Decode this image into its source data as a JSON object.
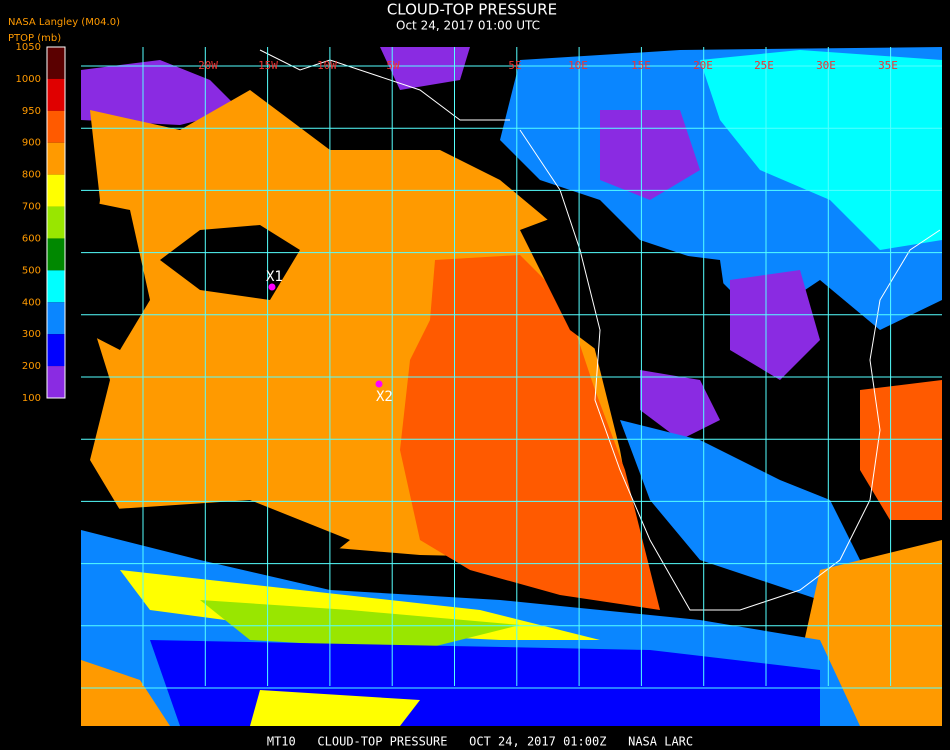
{
  "header": {
    "title": "CLOUD-TOP PRESSURE",
    "subtitle": "Oct 24, 2017 01:00 UTC",
    "source": "NASA Langley (M04.0)"
  },
  "legend": {
    "title": "PTOP (mb)",
    "labels": [
      1050,
      1000,
      950,
      900,
      800,
      700,
      600,
      500,
      400,
      300,
      200,
      100
    ],
    "colors": [
      "#5a0000",
      "#e00000",
      "#ff5a00",
      "#ff9a00",
      "#ffff00",
      "#99e600",
      "#008800",
      "#00ffff",
      "#0a86ff",
      "#0000ff",
      "#8a2be2"
    ]
  },
  "grid_labels": [
    "20W",
    "15W",
    "10W",
    "5W",
    "5E",
    "10E",
    "15E",
    "20E",
    "25E",
    "30E",
    "35E"
  ],
  "markers": [
    {
      "label": "X1"
    },
    {
      "label": "X2"
    }
  ],
  "footer": "MT10   CLOUD-TOP PRESSURE   OCT 24, 2017 01:00Z   NASA LARC"
}
